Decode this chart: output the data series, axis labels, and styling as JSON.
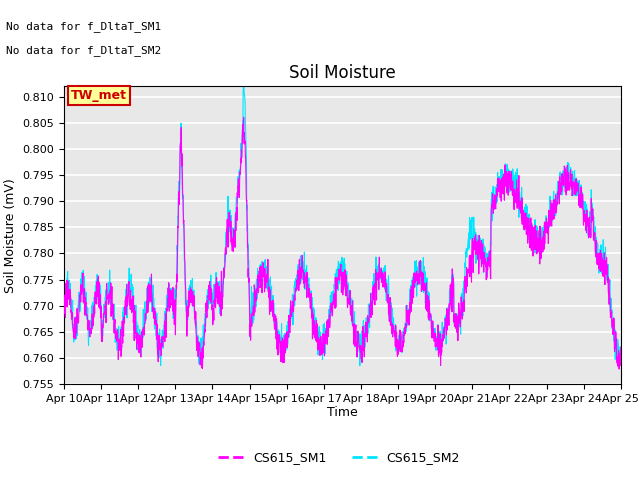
{
  "title": "Soil Moisture",
  "ylabel": "Soil Moisture (mV)",
  "xlabel": "Time",
  "ylim": [
    0.755,
    0.812
  ],
  "xlim": [
    0,
    15
  ],
  "plot_bg_color": "#e8e8e8",
  "grid_color": "white",
  "line1_color": "#ff00ff",
  "line2_color": "#00e5ff",
  "line1_label": "CS615_SM1",
  "line2_label": "CS615_SM2",
  "annotation_text1": "No data for f_DltaT_SM1",
  "annotation_text2": "No data for f_DltaT_SM2",
  "box_label": "TW_met",
  "box_color": "#ffff99",
  "box_edge_color": "#cc0000",
  "box_text_color": "#cc0000",
  "tick_labels": [
    "Apr 10",
    "Apr 11",
    "Apr 12",
    "Apr 13",
    "Apr 14",
    "Apr 15",
    "Apr 16",
    "Apr 17",
    "Apr 18",
    "Apr 19",
    "Apr 20",
    "Apr 21",
    "Apr 22",
    "Apr 23",
    "Apr 24",
    "Apr 25"
  ],
  "yticks": [
    0.755,
    0.76,
    0.765,
    0.77,
    0.775,
    0.78,
    0.785,
    0.79,
    0.795,
    0.8,
    0.805,
    0.81
  ],
  "title_fontsize": 12,
  "axis_fontsize": 9,
  "tick_fontsize": 8,
  "legend_fontsize": 9,
  "annot_fontsize": 8
}
